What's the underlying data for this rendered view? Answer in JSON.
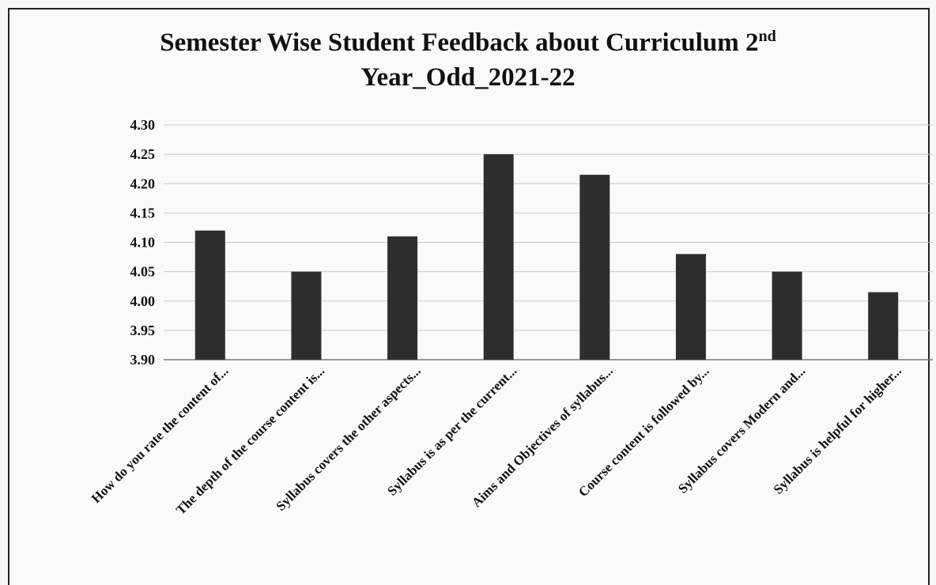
{
  "chart_data": {
    "type": "bar",
    "title_main": "Semester Wise Student Feedback about Curriculum 2",
    "title_sup": "nd",
    "title_line2": "Year_Odd_2021-22",
    "categories": [
      "How do you rate the content of...",
      "The depth of the course content is...",
      "Syllabus covers the other aspects...",
      "Syllabus is as per the current...",
      "Aims and Objectives of syllabus...",
      "Course content is followed by...",
      "Syllabus covers Modern and...",
      "Syllabus is helpful for higher..."
    ],
    "values": [
      4.12,
      4.05,
      4.11,
      4.25,
      4.215,
      4.08,
      4.05,
      4.015
    ],
    "yticks": [
      "3.90",
      "3.95",
      "4.00",
      "4.05",
      "4.10",
      "4.15",
      "4.20",
      "4.25",
      "4.30"
    ],
    "ylim": [
      3.9,
      4.3
    ],
    "grid": true,
    "bar_color": "#2e2e2e"
  }
}
